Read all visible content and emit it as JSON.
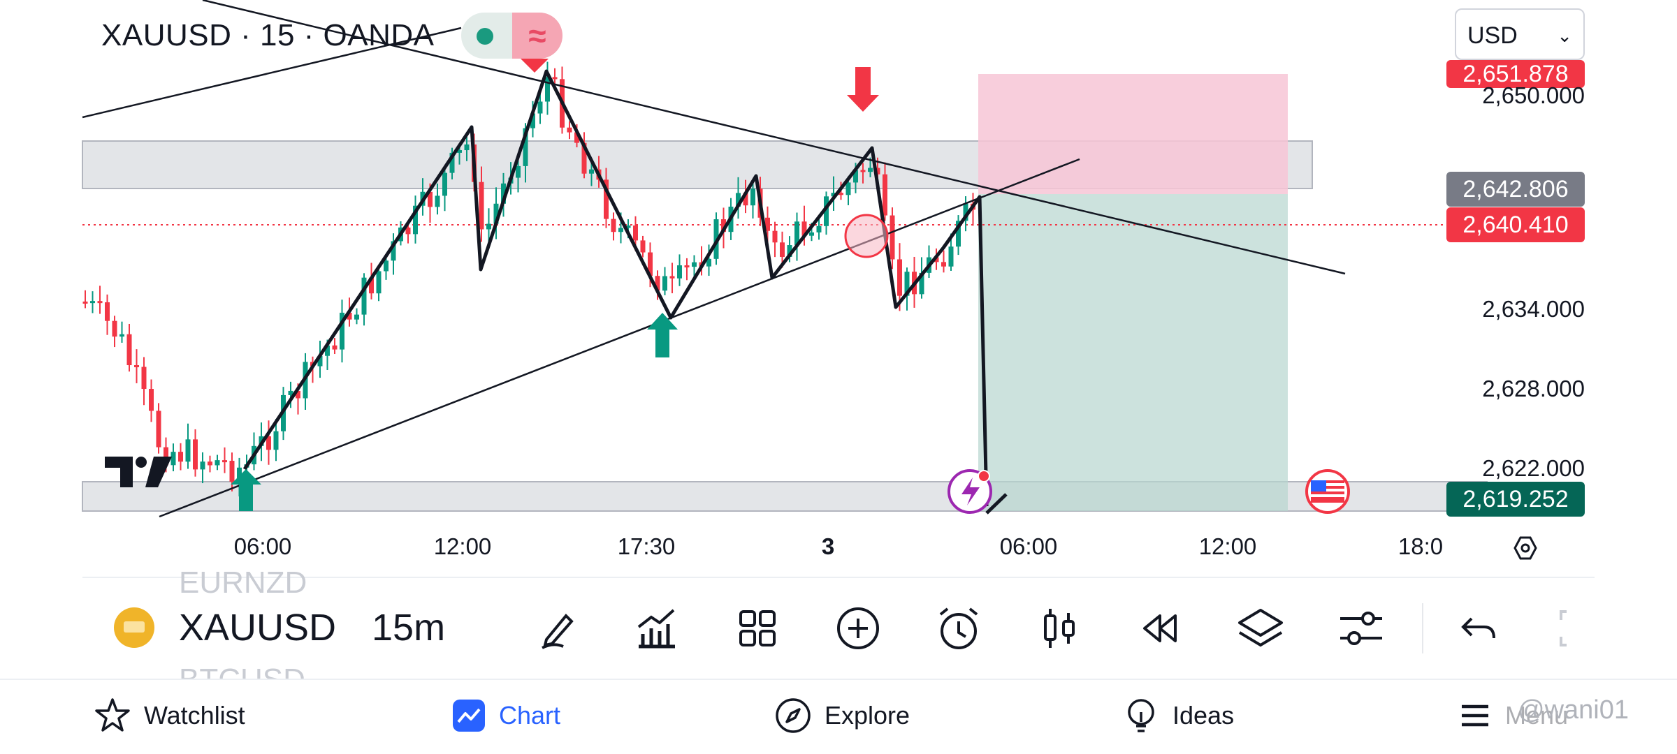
{
  "header": {
    "symbol_title": "XAUUSD · 15 · OANDA",
    "wave_icon": "≈"
  },
  "currency": {
    "selected": "USD"
  },
  "price_axis": {
    "labels": [
      "2,650.000",
      "2,634.000",
      "2,628.000",
      "2,622.000"
    ],
    "badge_top": {
      "value": "2,651.878",
      "color": "#f23645"
    },
    "badge_entry": {
      "value": "2,642.806",
      "color": "#787b86"
    },
    "badge_current": {
      "value": "2,640.410",
      "color": "#f23645"
    },
    "badge_target": {
      "value": "2,619.252",
      "color": "#056656"
    }
  },
  "time_axis": {
    "labels": [
      "06:00",
      "12:00",
      "17:30",
      "3",
      "06:00",
      "12:00",
      "18:0"
    ]
  },
  "symbol_bar": {
    "ghost_above": "EURNZD",
    "symbol": "XAUUSD",
    "interval": "15m",
    "ghost_below": "BTCUSD",
    "tools": [
      "pencil-icon",
      "indicators-icon",
      "grid-icon",
      "add-icon",
      "alarm-icon",
      "candles-icon",
      "replay-icon",
      "layers-icon",
      "settings-sliders-icon",
      "undo-icon",
      "fullscreen-icon"
    ]
  },
  "bottom_nav": {
    "watchlist": "Watchlist",
    "chart": "Chart",
    "explore": "Explore",
    "ideas": "Ideas",
    "menu": "Menu"
  },
  "watermark": "@wani01",
  "colors": {
    "up": "#089981",
    "down": "#f23645",
    "accent": "#2962ff",
    "short_risk": "#f7c6d6",
    "short_reward": "#b6d5cf"
  }
}
